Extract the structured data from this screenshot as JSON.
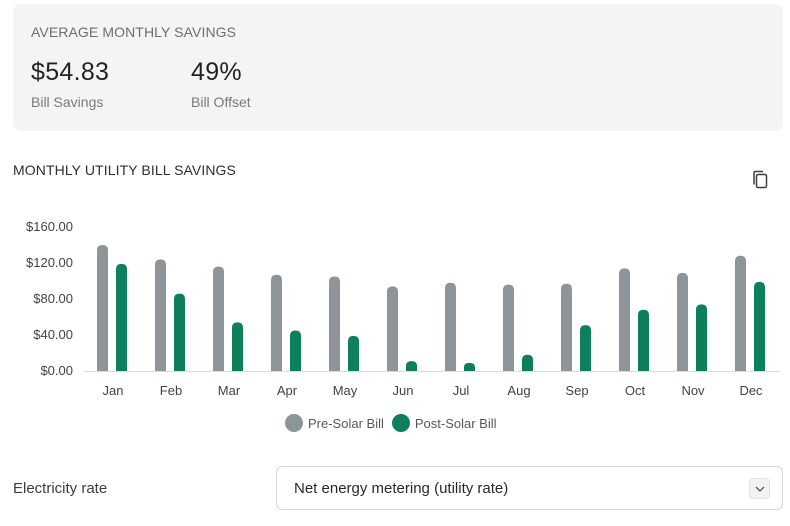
{
  "summary": {
    "heading": "AVERAGE MONTHLY SAVINGS",
    "bill_savings_value": "$54.83",
    "bill_savings_label": "Bill Savings",
    "bill_offset_value": "49%",
    "bill_offset_label": "Bill Offset"
  },
  "chart_section": {
    "title": "MONTHLY UTILITY BILL SAVINGS",
    "copy_icon": "copy-icon"
  },
  "chart_data": {
    "type": "bar",
    "categories": [
      "Jan",
      "Feb",
      "Mar",
      "Apr",
      "May",
      "Jun",
      "Jul",
      "Aug",
      "Sep",
      "Oct",
      "Nov",
      "Dec"
    ],
    "series": [
      {
        "name": "Pre-Solar Bill",
        "color": "#8e9598",
        "values": [
          140,
          124,
          116,
          107,
          105,
          94,
          98,
          96,
          97,
          114,
          109,
          128
        ]
      },
      {
        "name": "Post-Solar Bill",
        "color": "#0d7f5c",
        "values": [
          119,
          86,
          54,
          45,
          39,
          11,
          9,
          18,
          51,
          68,
          74,
          99
        ]
      }
    ],
    "yticks": [
      "$0.00",
      "$40.00",
      "$80.00",
      "$120.00",
      "$160.00"
    ],
    "ytick_values": [
      0,
      40,
      80,
      120,
      160
    ],
    "ylim": [
      0,
      160
    ],
    "legend_position": "bottom"
  },
  "rate": {
    "label": "Electricity rate",
    "selected": "Net energy metering (utility rate)",
    "chevron_icon": "chevron-down-icon"
  }
}
